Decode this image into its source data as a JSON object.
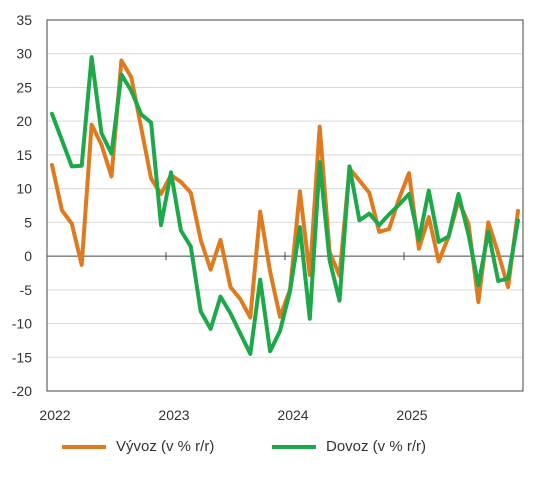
{
  "chart_data": {
    "type": "line",
    "title": "",
    "xlabel": "",
    "ylabel": "",
    "ylim": [
      -20,
      35
    ],
    "yticks": [
      -20,
      -15,
      -10,
      -5,
      0,
      5,
      10,
      15,
      20,
      25,
      30,
      35
    ],
    "xticks": [
      "2022",
      "2023",
      "2024",
      "2025"
    ],
    "x_start": "2022-01",
    "grid": true,
    "legend_position": "bottom",
    "series": [
      {
        "name": "Vývoz (v % r/r)",
        "color": "#E07A1F",
        "values": [
          13.5,
          6.8,
          4.8,
          -1.3,
          19.5,
          16.5,
          11.8,
          29,
          26.5,
          19,
          11.5,
          9.2,
          12,
          11,
          9.4,
          2.4,
          -2,
          2.4,
          -4.6,
          -6.4,
          -9.1,
          6.6,
          -2.3,
          -9,
          -5,
          9.6,
          -2.8,
          19.2,
          0.6,
          -2.9,
          13,
          11.2,
          9.4,
          3.6,
          4,
          8.5,
          12.3,
          1.1,
          5.8,
          -0.8,
          2.9,
          8.2,
          4.8,
          -6.8,
          5,
          0.4,
          -4.6,
          6.7
        ]
      },
      {
        "name": "Dovoz (v % r/r)",
        "color": "#1DA84A",
        "values": [
          21.1,
          17.2,
          13.3,
          13.4,
          29.5,
          18.2,
          15.2,
          26.9,
          24.5,
          21,
          19.8,
          4.6,
          12.4,
          3.8,
          1.4,
          -8.2,
          -10.8,
          -6,
          -8.5,
          -11.5,
          -14.5,
          -3.5,
          -14.1,
          -11.1,
          -5.2,
          4.3,
          -9.3,
          13.9,
          -0.6,
          -6.6,
          13.3,
          5.3,
          6.3,
          4.6,
          6.2,
          7.6,
          9.2,
          2.4,
          9.7,
          2.1,
          2.9,
          9.2,
          3.2,
          -4.3,
          3.6,
          -3.7,
          -3.3,
          5.3
        ]
      }
    ]
  }
}
